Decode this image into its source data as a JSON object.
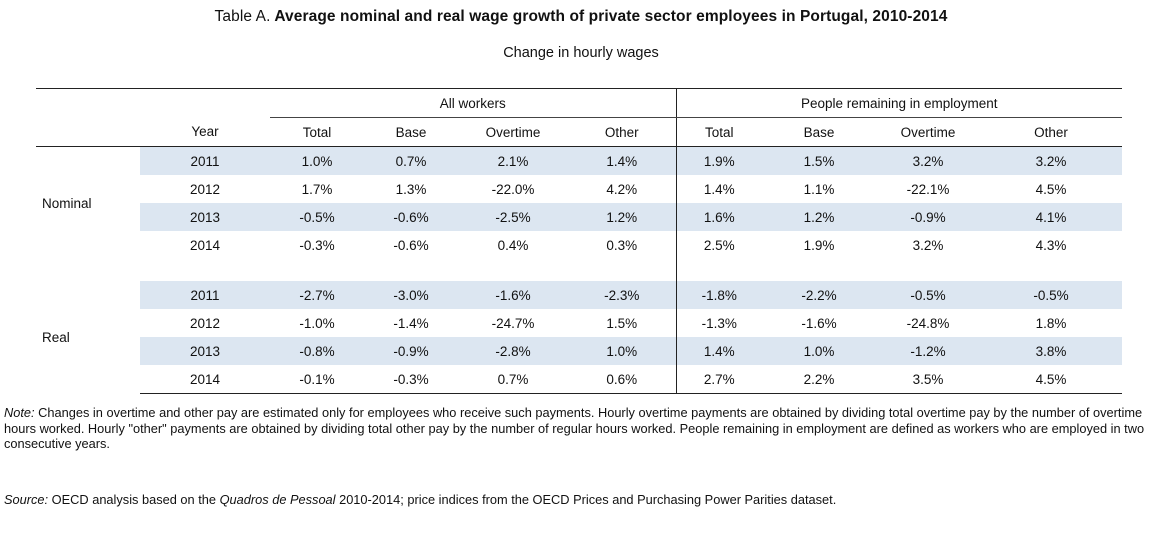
{
  "title": {
    "prefix": "Table A.",
    "main": "Average nominal and real wage growth of private sector employees in Portugal, 2010-2014"
  },
  "subtitle": "Change in hourly wages",
  "table": {
    "groups": [
      "All workers",
      "People remaining in employment"
    ],
    "columns": [
      "Year",
      "Total",
      "Base",
      "Overtime",
      "Other",
      "Total",
      "Base",
      "Overtime",
      "Other"
    ],
    "sections": [
      {
        "label": "Nominal",
        "rows": [
          {
            "year": "2011",
            "values": [
              "1.0%",
              "0.7%",
              "2.1%",
              "1.4%",
              "1.9%",
              "1.5%",
              "3.2%",
              "3.2%"
            ]
          },
          {
            "year": "2012",
            "values": [
              "1.7%",
              "1.3%",
              "-22.0%",
              "4.2%",
              "1.4%",
              "1.1%",
              "-22.1%",
              "4.5%"
            ]
          },
          {
            "year": "2013",
            "values": [
              "-0.5%",
              "-0.6%",
              "-2.5%",
              "1.2%",
              "1.6%",
              "1.2%",
              "-0.9%",
              "4.1%"
            ]
          },
          {
            "year": "2014",
            "values": [
              "-0.3%",
              "-0.6%",
              "0.4%",
              "0.3%",
              "2.5%",
              "1.9%",
              "3.2%",
              "4.3%"
            ]
          }
        ]
      },
      {
        "label": "Real",
        "rows": [
          {
            "year": "2011",
            "values": [
              "-2.7%",
              "-3.0%",
              "-1.6%",
              "-2.3%",
              "-1.8%",
              "-2.2%",
              "-0.5%",
              "-0.5%"
            ]
          },
          {
            "year": "2012",
            "values": [
              "-1.0%",
              "-1.4%",
              "-24.7%",
              "1.5%",
              "-1.3%",
              "-1.6%",
              "-24.8%",
              "1.8%"
            ]
          },
          {
            "year": "2013",
            "values": [
              "-0.8%",
              "-0.9%",
              "-2.8%",
              "1.0%",
              "1.4%",
              "1.0%",
              "-1.2%",
              "3.8%"
            ]
          },
          {
            "year": "2014",
            "values": [
              "-0.1%",
              "-0.3%",
              "0.7%",
              "0.6%",
              "2.7%",
              "2.2%",
              "3.5%",
              "4.5%"
            ]
          }
        ]
      }
    ]
  },
  "note": {
    "label": "Note:",
    "text": "Changes in overtime and other pay are estimated only for employees who receive such payments. Hourly overtime payments are obtained by dividing total overtime pay by the number of overtime hours worked. Hourly \"other\" payments are obtained by dividing total other pay by the number of regular hours worked. People remaining in employment are defined as workers who are employed in two consecutive years."
  },
  "source": {
    "label": "Source:",
    "before": "OECD analysis based on the",
    "italic": "Quadros de Pessoal",
    "after": "2010-2014; price indices from the OECD Prices and Purchasing Power Parities dataset."
  },
  "colors": {
    "shade": "#dce6f1",
    "rule": "#222222"
  }
}
